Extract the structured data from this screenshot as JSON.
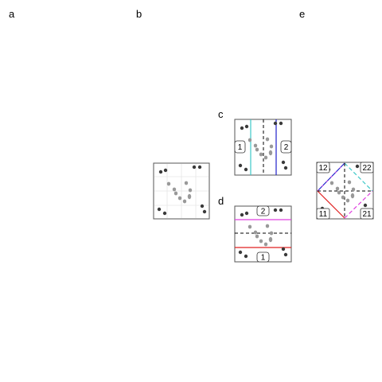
{
  "panels": {
    "a": {
      "label": "a"
    },
    "b": {
      "label": "b"
    },
    "c": {
      "label": "c",
      "region_labels": [
        "1",
        "2"
      ]
    },
    "d": {
      "label": "d",
      "region_labels": [
        "2",
        "1"
      ]
    },
    "e": {
      "label": "e",
      "region_labels": [
        "12",
        "22",
        "11",
        "21"
      ]
    }
  },
  "colors": {
    "dark_point": "#3a3a3a",
    "light_point": "#999999",
    "cyan_line": "#3cc8c8",
    "blue_line": "#2020cc",
    "magenta_line": "#e040e0",
    "red_line": "#e02020",
    "frame": "#555555"
  }
}
